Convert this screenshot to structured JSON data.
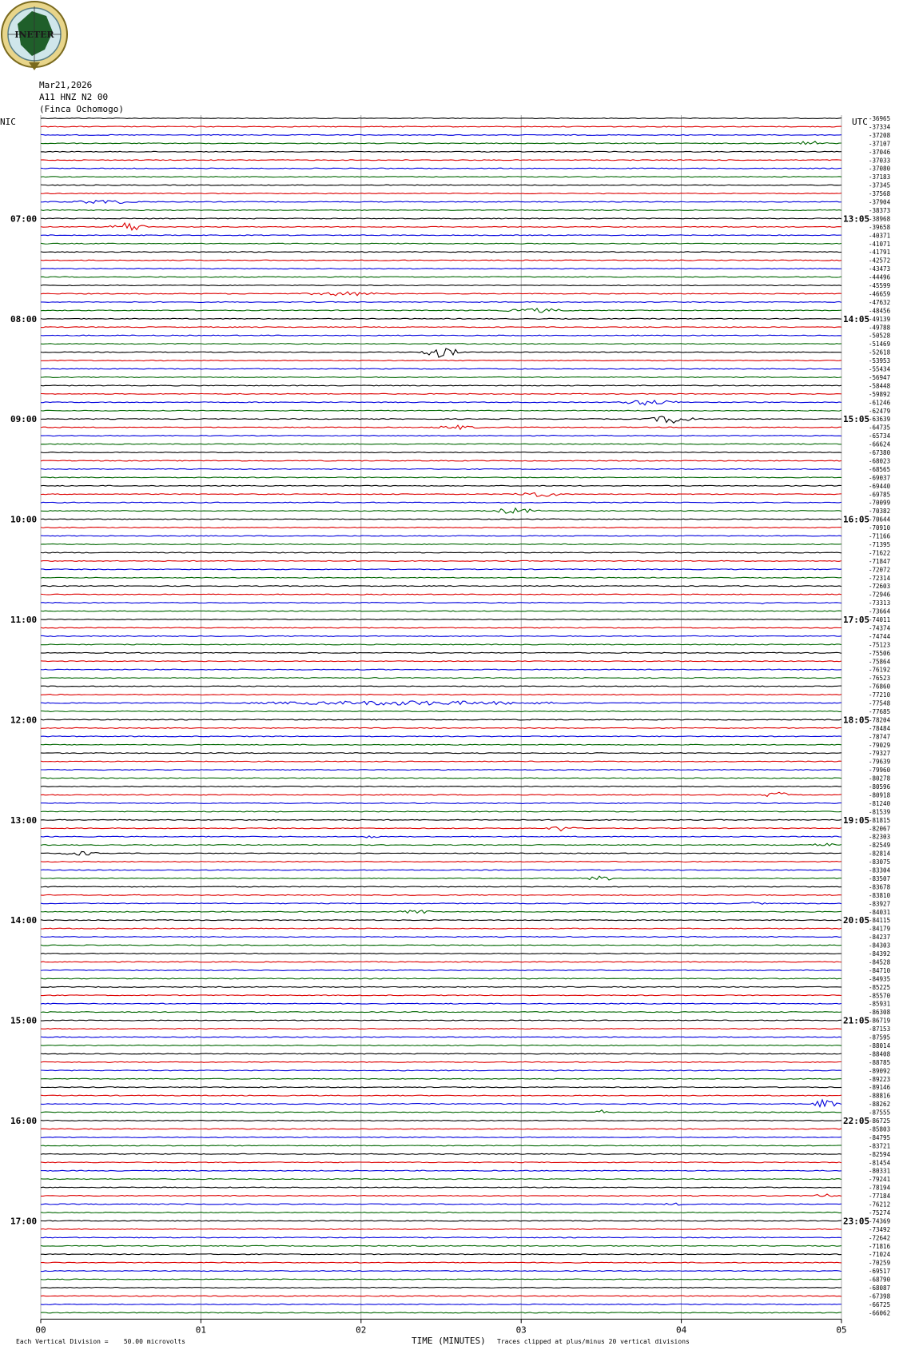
{
  "header": {
    "logo_text": "INETER",
    "date": "Mar21,2026",
    "station": "A11 HNZ N2 00",
    "location": "(Finca Ochomogo)"
  },
  "labels": {
    "left_zone": "NIC",
    "right_zone": "UTC",
    "x_axis_title": "TIME (MINUTES)",
    "scale_note": "Each Vertical Division =    50.00 microvolts",
    "clip_note": "Traces clipped at plus/minus 20 vertical divisions"
  },
  "chart_data": {
    "type": "line",
    "title": "",
    "xlabel": "TIME (MINUTES)",
    "ylabel": "",
    "x_ticks": [
      "00",
      "01",
      "02",
      "03",
      "04",
      "05"
    ],
    "xlim": [
      0,
      5
    ],
    "grid": true,
    "trace_colors": [
      "#000000",
      "#dd0000",
      "#0000dd",
      "#006600"
    ],
    "left_time_labels": [
      "07:00",
      "08:00",
      "09:00",
      "10:00",
      "11:00",
      "12:00",
      "13:00",
      "14:00",
      "15:00",
      "16:00",
      "17:00"
    ],
    "right_time_labels": [
      "13:05",
      "14:05",
      "15:05",
      "16:05",
      "17:05",
      "18:05",
      "19:05",
      "20:05",
      "21:05",
      "22:05",
      "23:05"
    ],
    "first_hour_row": 12,
    "rows_per_hour": 12,
    "offset_values": [
      "-36965",
      "-37334",
      "-37208",
      "-37107",
      "-37046",
      "-37033",
      "-37080",
      "-37183",
      "-37345",
      "-37568",
      "-37904",
      "-38373",
      "-38968",
      "-39658",
      "-40371",
      "-41071",
      "-41791",
      "-42572",
      "-43473",
      "-44496",
      "-45599",
      "-46659",
      "-47632",
      "-48456",
      "-49139",
      "-49788",
      "-50528",
      "-51469",
      "-52618",
      "-53953",
      "-55434",
      "-56947",
      "-58448",
      "-59892",
      "-61246",
      "-62479",
      "-63639",
      "-64735",
      "-65734",
      "-66624",
      "-67380",
      "-68023",
      "-68565",
      "-69037",
      "-69440",
      "-69785",
      "-70099",
      "-70382",
      "-70644",
      "-70910",
      "-71166",
      "-71395",
      "-71622",
      "-71847",
      "-72072",
      "-72314",
      "-72603",
      "-72946",
      "-73313",
      "-73664",
      "-74011",
      "-74374",
      "-74744",
      "-75123",
      "-75506",
      "-75864",
      "-76192",
      "-76523",
      "-76860",
      "-77210",
      "-77548",
      "-77685",
      "-78204",
      "-78484",
      "-78747",
      "-79029",
      "-79327",
      "-79639",
      "-79960",
      "-80278",
      "-80596",
      "-80918",
      "-81240",
      "-81539",
      "-81815",
      "-82067",
      "-82303",
      "-82549",
      "-82814",
      "-83075",
      "-83304",
      "-83507",
      "-83678",
      "-83810",
      "-83927",
      "-84031",
      "-84115",
      "-84179",
      "-84237",
      "-84303",
      "-84392",
      "-84528",
      "-84710",
      "-84935",
      "-85225",
      "-85570",
      "-85931",
      "-86308",
      "-86719",
      "-87153",
      "-87595",
      "-88014",
      "-88408",
      "-88785",
      "-89092",
      "-89223",
      "-89146",
      "-88816",
      "-88262",
      "-87555",
      "-86725",
      "-85803",
      "-84795",
      "-83721",
      "-82594",
      "-81454",
      "-80331",
      "-79241",
      "-78194",
      "-77184",
      "-76212",
      "-75274",
      "-74369",
      "-73492",
      "-72642",
      "-71816",
      "-71024",
      "-70259",
      "-69517",
      "-68790",
      "-68087",
      "-67398",
      "-66725",
      "-66062"
    ],
    "events": [
      {
        "row": 3,
        "minute": 4.8,
        "width": 0.3,
        "amp": 4
      },
      {
        "row": 10,
        "minute": 0.4,
        "width": 0.6,
        "amp": 3
      },
      {
        "row": 13,
        "minute": 0.55,
        "width": 0.3,
        "amp": 7
      },
      {
        "row": 21,
        "minute": 1.9,
        "width": 0.7,
        "amp": 3
      },
      {
        "row": 23,
        "minute": 3.1,
        "width": 0.6,
        "amp": 3
      },
      {
        "row": 28,
        "minute": 2.5,
        "width": 0.35,
        "amp": 7
      },
      {
        "row": 34,
        "minute": 3.8,
        "width": 0.5,
        "amp": 4
      },
      {
        "row": 36,
        "minute": 3.95,
        "width": 0.4,
        "amp": 6
      },
      {
        "row": 37,
        "minute": 2.6,
        "width": 0.4,
        "amp": 3
      },
      {
        "row": 45,
        "minute": 3.1,
        "width": 0.45,
        "amp": 4
      },
      {
        "row": 47,
        "minute": 2.95,
        "width": 0.45,
        "amp": 4
      },
      {
        "row": 58,
        "minute": 4.5,
        "width": 0.12,
        "amp": 3
      },
      {
        "row": 70,
        "minute": 2.3,
        "width": 3.0,
        "amp": 3
      },
      {
        "row": 81,
        "minute": 4.6,
        "width": 0.3,
        "amp": 4
      },
      {
        "row": 85,
        "minute": 3.25,
        "width": 0.25,
        "amp": 4
      },
      {
        "row": 86,
        "minute": 2.05,
        "width": 0.2,
        "amp": 2
      },
      {
        "row": 87,
        "minute": 4.9,
        "width": 0.25,
        "amp": 3
      },
      {
        "row": 88,
        "minute": 0.25,
        "width": 0.35,
        "amp": 3
      },
      {
        "row": 91,
        "minute": 3.5,
        "width": 0.35,
        "amp": 3
      },
      {
        "row": 94,
        "minute": 4.45,
        "width": 0.25,
        "amp": 2
      },
      {
        "row": 95,
        "minute": 2.35,
        "width": 0.35,
        "amp": 3
      },
      {
        "row": 118,
        "minute": 4.9,
        "width": 0.2,
        "amp": 7
      },
      {
        "row": 119,
        "minute": 3.5,
        "width": 0.12,
        "amp": 3
      },
      {
        "row": 129,
        "minute": 4.9,
        "width": 0.2,
        "amp": 3
      },
      {
        "row": 130,
        "minute": 3.95,
        "width": 0.2,
        "amp": 2
      },
      {
        "row": 130,
        "minute": 0.95,
        "width": 0.2,
        "amp": 2
      }
    ]
  }
}
